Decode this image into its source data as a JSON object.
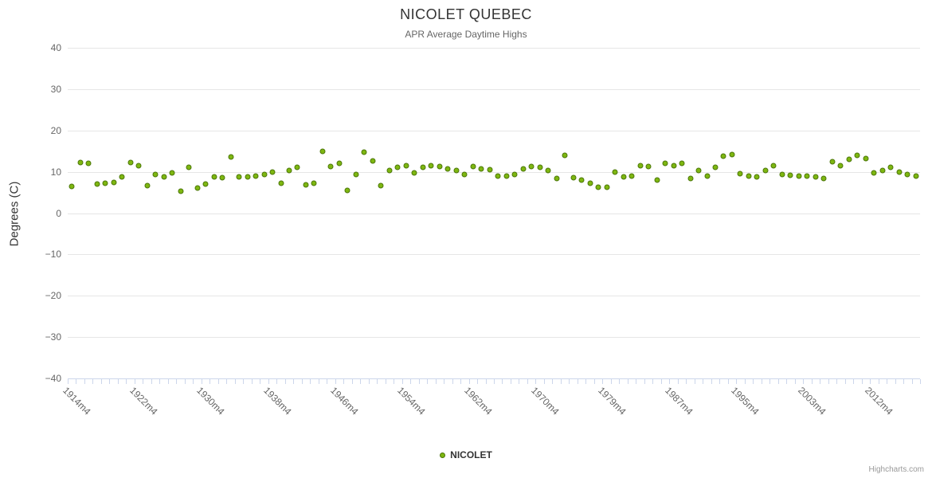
{
  "chart": {
    "title": "NICOLET QUEBEC",
    "subtitle": "APR Average Daytime Highs",
    "y_axis_title": "Degrees (C)",
    "legend_label": "NICOLET",
    "credits": "Highcharts.com",
    "colors": {
      "point_fill": "#7eb711",
      "point_border": "#4b7609",
      "grid": "#e6e6e6",
      "axis_line": "#ccd6eb",
      "title_text": "#333333",
      "label_text": "#666666"
    }
  },
  "chart_data": {
    "type": "scatter",
    "title": "NICOLET QUEBEC",
    "subtitle": "APR Average Daytime Highs",
    "xlabel": "",
    "ylabel": "Degrees (C)",
    "ylim": [
      -40,
      40
    ],
    "y_tick_interval": 10,
    "x_label_interval": 8,
    "grid": true,
    "legend_position": "bottom",
    "categories": [
      "1914m4",
      "1915m4",
      "1916m4",
      "1917m4",
      "1918m4",
      "1919m4",
      "1920m4",
      "1921m4",
      "1922m4",
      "1923m4",
      "1924m4",
      "1925m4",
      "1926m4",
      "1927m4",
      "1928m4",
      "1929m4",
      "1930m4",
      "1931m4",
      "1932m4",
      "1933m4",
      "1934m4",
      "1935m4",
      "1936m4",
      "1937m4",
      "1938m4",
      "1939m4",
      "1940m4",
      "1941m4",
      "1942m4",
      "1943m4",
      "1944m4",
      "1945m4",
      "1946m4",
      "1947m4",
      "1948m4",
      "1949m4",
      "1950m4",
      "1951m4",
      "1952m4",
      "1953m4",
      "1954m4",
      "1955m4",
      "1956m4",
      "1957m4",
      "1958m4",
      "1959m4",
      "1960m4",
      "1961m4",
      "1962m4",
      "1963m4",
      "1964m4",
      "1965m4",
      "1966m4",
      "1967m4",
      "1968m4",
      "1969m4",
      "1970m4",
      "1971m4",
      "1973m4",
      "1974m4",
      "1975m4",
      "1976m4",
      "1977m4",
      "1978m4",
      "1979m4",
      "1980m4",
      "1981m4",
      "1982m4",
      "1983m4",
      "1984m4",
      "1985m4",
      "1986m4",
      "1987m4",
      "1988m4",
      "1989m4",
      "1990m4",
      "1991m4",
      "1992m4",
      "1993m4",
      "1994m4",
      "1995m4",
      "1996m4",
      "1997m4",
      "1998m4",
      "1999m4",
      "2000m4",
      "2001m4",
      "2002m4",
      "2003m4",
      "2004m4",
      "2006m4",
      "2007m4",
      "2008m4",
      "2009m4",
      "2010m4",
      "2011m4",
      "2012m4",
      "2013m4",
      "2014m4",
      "2015m4",
      "2016m4",
      "2017m4"
    ],
    "series": [
      {
        "name": "NICOLET",
        "values": [
          6.5,
          12.3,
          12.0,
          7.0,
          7.3,
          7.5,
          8.7,
          12.3,
          11.5,
          6.7,
          9.3,
          8.7,
          9.8,
          5.3,
          11.0,
          6.0,
          7.0,
          8.7,
          8.5,
          13.5,
          8.7,
          8.8,
          9.0,
          9.3,
          10.0,
          7.3,
          10.3,
          11.0,
          6.8,
          7.3,
          15.0,
          11.3,
          12.0,
          5.5,
          9.3,
          14.8,
          12.7,
          6.7,
          10.3,
          11.0,
          11.5,
          9.7,
          11.0,
          11.5,
          11.3,
          10.7,
          10.3,
          9.3,
          11.3,
          10.7,
          10.5,
          9.0,
          9.0,
          9.3,
          10.7,
          11.3,
          11.0,
          10.3,
          8.3,
          14.0,
          8.5,
          8.0,
          7.3,
          6.3,
          6.2,
          10.0,
          8.7,
          9.0,
          11.5,
          11.3,
          8.0,
          12.0,
          11.5,
          12.0,
          8.3,
          10.3,
          9.0,
          11.0,
          13.7,
          14.2,
          9.5,
          9.0,
          8.7,
          10.3,
          11.5,
          9.3,
          9.2,
          9.0,
          9.0,
          8.7,
          8.3,
          12.5,
          11.5,
          13.0,
          14.0,
          13.3,
          9.7,
          10.3,
          11.0,
          10.0,
          9.3,
          9.0
        ]
      }
    ]
  }
}
